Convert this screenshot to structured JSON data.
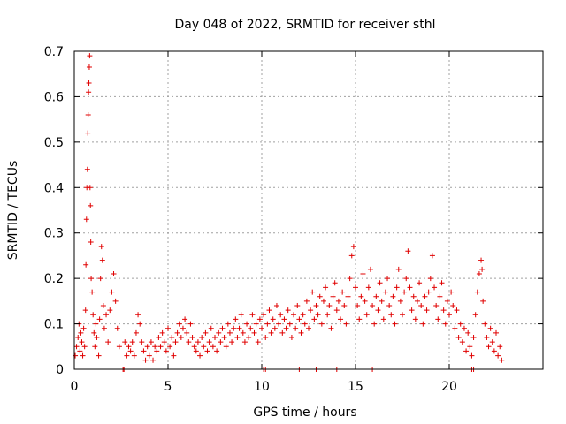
{
  "chart_data": {
    "type": "scatter",
    "title": "Day 048 of 2022, SRMTID for receiver sthl",
    "xlabel": "GPS time / hours",
    "ylabel": "SRMTID / TECUs",
    "xlim": [
      0,
      25
    ],
    "ylim": [
      0,
      0.7
    ],
    "xticks": [
      0,
      5,
      10,
      15,
      20
    ],
    "yticks": [
      0,
      0.1,
      0.2,
      0.3,
      0.4,
      0.5,
      0.6,
      0.7
    ],
    "xtick_labels": [
      "0",
      "5",
      "10",
      "15",
      "20"
    ],
    "ytick_labels": [
      "0",
      "0.1",
      "0.2",
      "0.3",
      "0.4",
      "0.5",
      "0.6",
      "0.7"
    ],
    "grid": true,
    "marker": "+",
    "color": "#e00000",
    "series": [
      {
        "name": "SRMTID",
        "points": [
          [
            0.05,
            0.03
          ],
          [
            0.12,
            0.05
          ],
          [
            0.2,
            0.07
          ],
          [
            0.25,
            0.1
          ],
          [
            0.3,
            0.04
          ],
          [
            0.35,
            0.08
          ],
          [
            0.4,
            0.06
          ],
          [
            0.45,
            0.03
          ],
          [
            0.5,
            0.09
          ],
          [
            0.55,
            0.05
          ],
          [
            0.6,
            0.13
          ],
          [
            0.62,
            0.23
          ],
          [
            0.65,
            0.33
          ],
          [
            0.67,
            0.4
          ],
          [
            0.7,
            0.44
          ],
          [
            0.72,
            0.52
          ],
          [
            0.74,
            0.56
          ],
          [
            0.76,
            0.61
          ],
          [
            0.78,
            0.63
          ],
          [
            0.8,
            0.665
          ],
          [
            0.82,
            0.69
          ],
          [
            0.84,
            0.4
          ],
          [
            0.86,
            0.36
          ],
          [
            0.88,
            0.28
          ],
          [
            0.9,
            0.2
          ],
          [
            0.95,
            0.17
          ],
          [
            1.0,
            0.12
          ],
          [
            1.05,
            0.08
          ],
          [
            1.1,
            0.05
          ],
          [
            1.15,
            0.1
          ],
          [
            1.2,
            0.07
          ],
          [
            1.3,
            0.03
          ],
          [
            1.35,
            0.11
          ],
          [
            1.4,
            0.2
          ],
          [
            1.45,
            0.27
          ],
          [
            1.5,
            0.24
          ],
          [
            1.55,
            0.14
          ],
          [
            1.6,
            0.09
          ],
          [
            1.7,
            0.12
          ],
          [
            1.8,
            0.06
          ],
          [
            1.9,
            0.13
          ],
          [
            2.0,
            0.17
          ],
          [
            2.1,
            0.21
          ],
          [
            2.2,
            0.15
          ],
          [
            2.3,
            0.09
          ],
          [
            2.4,
            0.05
          ],
          [
            2.6,
            0.0
          ],
          [
            2.7,
            0.06
          ],
          [
            2.8,
            0.03
          ],
          [
            2.9,
            0.05
          ],
          [
            3.0,
            0.04
          ],
          [
            3.1,
            0.06
          ],
          [
            3.2,
            0.03
          ],
          [
            3.3,
            0.08
          ],
          [
            3.4,
            0.12
          ],
          [
            3.5,
            0.1
          ],
          [
            3.6,
            0.06
          ],
          [
            3.7,
            0.04
          ],
          [
            3.8,
            0.02
          ],
          [
            3.9,
            0.05
          ],
          [
            4.0,
            0.03
          ],
          [
            4.1,
            0.06
          ],
          [
            4.2,
            0.02
          ],
          [
            4.3,
            0.05
          ],
          [
            4.4,
            0.04
          ],
          [
            4.5,
            0.07
          ],
          [
            4.6,
            0.05
          ],
          [
            4.7,
            0.08
          ],
          [
            4.8,
            0.06
          ],
          [
            4.9,
            0.04
          ],
          [
            5.0,
            0.09
          ],
          [
            5.1,
            0.05
          ],
          [
            5.2,
            0.07
          ],
          [
            5.3,
            0.03
          ],
          [
            5.4,
            0.06
          ],
          [
            5.5,
            0.08
          ],
          [
            5.6,
            0.1
          ],
          [
            5.7,
            0.07
          ],
          [
            5.8,
            0.09
          ],
          [
            5.9,
            0.11
          ],
          [
            6.0,
            0.08
          ],
          [
            6.1,
            0.06
          ],
          [
            6.2,
            0.1
          ],
          [
            6.3,
            0.07
          ],
          [
            6.4,
            0.05
          ],
          [
            6.5,
            0.04
          ],
          [
            6.6,
            0.06
          ],
          [
            6.7,
            0.03
          ],
          [
            6.8,
            0.07
          ],
          [
            6.9,
            0.05
          ],
          [
            7.0,
            0.08
          ],
          [
            7.1,
            0.04
          ],
          [
            7.2,
            0.06
          ],
          [
            7.3,
            0.09
          ],
          [
            7.4,
            0.05
          ],
          [
            7.5,
            0.07
          ],
          [
            7.6,
            0.04
          ],
          [
            7.7,
            0.08
          ],
          [
            7.8,
            0.06
          ],
          [
            7.9,
            0.09
          ],
          [
            8.0,
            0.07
          ],
          [
            8.1,
            0.05
          ],
          [
            8.2,
            0.1
          ],
          [
            8.3,
            0.08
          ],
          [
            8.4,
            0.06
          ],
          [
            8.5,
            0.09
          ],
          [
            8.6,
            0.11
          ],
          [
            8.7,
            0.07
          ],
          [
            8.8,
            0.09
          ],
          [
            8.9,
            0.12
          ],
          [
            9.0,
            0.08
          ],
          [
            9.1,
            0.06
          ],
          [
            9.2,
            0.1
          ],
          [
            9.3,
            0.07
          ],
          [
            9.4,
            0.09
          ],
          [
            9.5,
            0.12
          ],
          [
            9.6,
            0.08
          ],
          [
            9.7,
            0.1
          ],
          [
            9.8,
            0.06
          ],
          [
            9.9,
            0.11
          ],
          [
            10.0,
            0.09
          ],
          [
            10.1,
            0.12
          ],
          [
            10.2,
            0.07
          ],
          [
            10.3,
            0.1
          ],
          [
            10.4,
            0.13
          ],
          [
            10.5,
            0.08
          ],
          [
            10.6,
            0.11
          ],
          [
            10.7,
            0.09
          ],
          [
            10.8,
            0.14
          ],
          [
            10.9,
            0.1
          ],
          [
            11.0,
            0.12
          ],
          [
            11.1,
            0.08
          ],
          [
            11.2,
            0.11
          ],
          [
            11.3,
            0.09
          ],
          [
            11.4,
            0.13
          ],
          [
            11.5,
            0.1
          ],
          [
            11.6,
            0.07
          ],
          [
            11.7,
            0.12
          ],
          [
            11.8,
            0.09
          ],
          [
            11.9,
            0.14
          ],
          [
            12.0,
            0.11
          ],
          [
            12.1,
            0.08
          ],
          [
            12.2,
            0.12
          ],
          [
            12.3,
            0.1
          ],
          [
            12.4,
            0.15
          ],
          [
            12.5,
            0.09
          ],
          [
            12.6,
            0.13
          ],
          [
            12.7,
            0.17
          ],
          [
            12.8,
            0.11
          ],
          [
            12.9,
            0.14
          ],
          [
            13.0,
            0.12
          ],
          [
            13.1,
            0.16
          ],
          [
            13.2,
            0.1
          ],
          [
            13.3,
            0.15
          ],
          [
            13.4,
            0.18
          ],
          [
            13.5,
            0.12
          ],
          [
            13.6,
            0.14
          ],
          [
            13.7,
            0.09
          ],
          [
            13.8,
            0.16
          ],
          [
            13.9,
            0.19
          ],
          [
            14.0,
            0.13
          ],
          [
            14.1,
            0.15
          ],
          [
            14.2,
            0.11
          ],
          [
            14.3,
            0.17
          ],
          [
            14.4,
            0.14
          ],
          [
            14.5,
            0.1
          ],
          [
            14.6,
            0.16
          ],
          [
            14.7,
            0.2
          ],
          [
            14.8,
            0.25
          ],
          [
            14.9,
            0.27
          ],
          [
            15.0,
            0.18
          ],
          [
            15.1,
            0.14
          ],
          [
            15.2,
            0.11
          ],
          [
            15.3,
            0.16
          ],
          [
            15.4,
            0.21
          ],
          [
            15.5,
            0.15
          ],
          [
            15.6,
            0.12
          ],
          [
            15.7,
            0.18
          ],
          [
            15.8,
            0.22
          ],
          [
            15.9,
            0.14
          ],
          [
            16.0,
            0.1
          ],
          [
            16.1,
            0.16
          ],
          [
            16.2,
            0.13
          ],
          [
            16.3,
            0.19
          ],
          [
            16.4,
            0.15
          ],
          [
            16.5,
            0.11
          ],
          [
            16.6,
            0.17
          ],
          [
            16.7,
            0.2
          ],
          [
            16.8,
            0.14
          ],
          [
            16.9,
            0.12
          ],
          [
            17.0,
            0.16
          ],
          [
            17.1,
            0.1
          ],
          [
            17.2,
            0.18
          ],
          [
            17.3,
            0.22
          ],
          [
            17.4,
            0.15
          ],
          [
            17.5,
            0.12
          ],
          [
            17.6,
            0.17
          ],
          [
            17.7,
            0.2
          ],
          [
            17.8,
            0.26
          ],
          [
            17.9,
            0.18
          ],
          [
            18.0,
            0.13
          ],
          [
            18.1,
            0.16
          ],
          [
            18.2,
            0.11
          ],
          [
            18.3,
            0.15
          ],
          [
            18.4,
            0.19
          ],
          [
            18.5,
            0.14
          ],
          [
            18.6,
            0.1
          ],
          [
            18.7,
            0.16
          ],
          [
            18.8,
            0.13
          ],
          [
            18.9,
            0.17
          ],
          [
            19.0,
            0.2
          ],
          [
            19.1,
            0.25
          ],
          [
            19.2,
            0.18
          ],
          [
            19.3,
            0.14
          ],
          [
            19.4,
            0.11
          ],
          [
            19.5,
            0.16
          ],
          [
            19.6,
            0.19
          ],
          [
            19.7,
            0.13
          ],
          [
            19.8,
            0.1
          ],
          [
            19.9,
            0.15
          ],
          [
            20.0,
            0.12
          ],
          [
            20.1,
            0.17
          ],
          [
            20.2,
            0.14
          ],
          [
            20.3,
            0.09
          ],
          [
            20.4,
            0.13
          ],
          [
            20.5,
            0.07
          ],
          [
            20.6,
            0.1
          ],
          [
            20.7,
            0.06
          ],
          [
            20.8,
            0.09
          ],
          [
            20.9,
            0.04
          ],
          [
            21.0,
            0.08
          ],
          [
            21.1,
            0.05
          ],
          [
            21.2,
            0.03
          ],
          [
            21.3,
            0.07
          ],
          [
            21.4,
            0.12
          ],
          [
            21.5,
            0.17
          ],
          [
            21.6,
            0.21
          ],
          [
            21.7,
            0.24
          ],
          [
            21.75,
            0.22
          ],
          [
            21.8,
            0.15
          ],
          [
            21.9,
            0.1
          ],
          [
            22.0,
            0.07
          ],
          [
            22.1,
            0.05
          ],
          [
            22.2,
            0.09
          ],
          [
            22.3,
            0.06
          ],
          [
            22.4,
            0.04
          ],
          [
            22.5,
            0.08
          ],
          [
            22.6,
            0.03
          ],
          [
            22.7,
            0.05
          ],
          [
            22.8,
            0.02
          ],
          [
            2.65,
            0.0
          ],
          [
            10.1,
            0.0
          ],
          [
            10.2,
            0.0
          ],
          [
            12.0,
            0.0
          ],
          [
            12.9,
            0.0
          ],
          [
            14.0,
            0.0
          ],
          [
            15.9,
            0.0
          ],
          [
            21.2,
            0.0
          ],
          [
            21.3,
            0.0
          ]
        ]
      }
    ]
  }
}
